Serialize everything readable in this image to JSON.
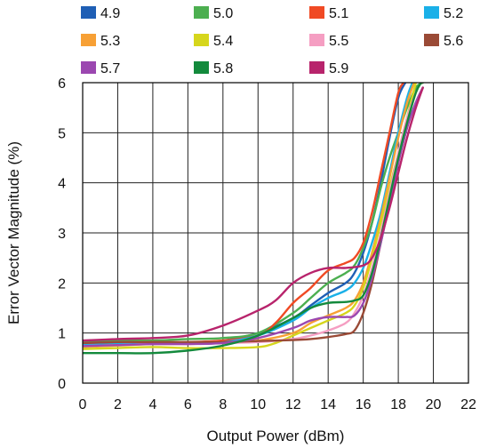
{
  "chart_data": {
    "type": "line",
    "title": "",
    "xlabel": "Output Power (dBm)",
    "ylabel": "Error Vector Magnitude (%)",
    "xlim": [
      0,
      22
    ],
    "ylim": [
      0,
      6
    ],
    "xticks": [
      "0",
      "2",
      "4",
      "6",
      "8",
      "10",
      "12",
      "14",
      "16",
      "18",
      "20",
      "22"
    ],
    "yticks": [
      "0",
      "1",
      "2",
      "3",
      "4",
      "5",
      "6"
    ],
    "grid": true,
    "legend_position": "top",
    "series": [
      {
        "name": "4.9",
        "color": "#1f5fb5",
        "x": [
          0,
          2,
          4,
          6,
          8,
          10,
          12,
          13,
          14,
          15,
          15.5,
          16,
          16.5,
          17,
          17.5,
          18,
          18.4
        ],
        "y": [
          0.78,
          0.8,
          0.8,
          0.8,
          0.85,
          1.0,
          1.3,
          1.55,
          1.8,
          2.0,
          2.2,
          2.6,
          3.2,
          4.0,
          4.9,
          5.7,
          6.0
        ]
      },
      {
        "name": "5.0",
        "color": "#4caf50",
        "x": [
          0,
          2,
          4,
          6,
          8,
          10,
          12,
          13,
          14,
          15,
          15.5,
          16,
          16.5,
          17,
          17.5,
          18,
          18.5,
          19,
          19.4
        ],
        "y": [
          0.82,
          0.85,
          0.85,
          0.88,
          0.9,
          1.0,
          1.4,
          1.7,
          2.0,
          2.2,
          2.35,
          2.7,
          3.2,
          3.9,
          4.5,
          5.0,
          5.5,
          5.9,
          6.0
        ]
      },
      {
        "name": "5.1",
        "color": "#f04a24",
        "x": [
          0,
          2,
          4,
          6,
          8,
          10,
          11,
          12,
          13,
          14,
          15,
          15.5,
          16,
          16.5,
          17,
          17.5,
          18,
          18.3
        ],
        "y": [
          0.78,
          0.8,
          0.82,
          0.82,
          0.85,
          0.95,
          1.2,
          1.6,
          1.9,
          2.25,
          2.4,
          2.5,
          2.8,
          3.4,
          4.2,
          5.0,
          5.8,
          6.0
        ]
      },
      {
        "name": "5.2",
        "color": "#1ab0e8",
        "x": [
          0,
          2,
          4,
          6,
          8,
          10,
          12,
          13,
          14,
          15,
          15.5,
          16,
          16.5,
          17,
          17.5,
          18,
          18.5,
          18.8
        ],
        "y": [
          0.76,
          0.78,
          0.78,
          0.8,
          0.82,
          0.95,
          1.25,
          1.5,
          1.7,
          1.85,
          2.0,
          2.3,
          2.8,
          3.4,
          4.2,
          5.0,
          5.7,
          6.0
        ]
      },
      {
        "name": "5.3",
        "color": "#f7a035",
        "x": [
          0,
          2,
          4,
          6,
          8,
          10,
          12,
          13,
          14,
          15,
          15.5,
          16,
          16.5,
          17,
          17.5,
          18,
          18.5,
          18.9
        ],
        "y": [
          0.72,
          0.75,
          0.78,
          0.78,
          0.8,
          0.85,
          1.0,
          1.2,
          1.35,
          1.5,
          1.65,
          2.0,
          2.6,
          3.3,
          4.1,
          4.9,
          5.6,
          6.0
        ]
      },
      {
        "name": "5.4",
        "color": "#d6d61c",
        "x": [
          0,
          2,
          4,
          6,
          8,
          10,
          11,
          12,
          13,
          14,
          15,
          15.5,
          16,
          16.5,
          17,
          17.5,
          18,
          18.5,
          19
        ],
        "y": [
          0.68,
          0.7,
          0.72,
          0.7,
          0.7,
          0.72,
          0.8,
          0.95,
          1.1,
          1.25,
          1.4,
          1.55,
          1.9,
          2.5,
          3.2,
          3.9,
          4.6,
          5.3,
          6.0
        ]
      },
      {
        "name": "5.5",
        "color": "#f59ec2",
        "x": [
          0,
          2,
          4,
          6,
          8,
          10,
          12,
          13,
          14,
          15,
          15.5,
          16,
          16.5,
          17,
          17.5,
          18,
          18.5,
          19,
          19.3
        ],
        "y": [
          0.74,
          0.76,
          0.78,
          0.78,
          0.8,
          0.82,
          0.88,
          0.95,
          1.05,
          1.2,
          1.4,
          1.75,
          2.3,
          3.0,
          3.8,
          4.6,
          5.3,
          5.8,
          6.0
        ]
      },
      {
        "name": "5.6",
        "color": "#9a4a36",
        "x": [
          0,
          2,
          4,
          6,
          8,
          10,
          12,
          13,
          14,
          15,
          15.5,
          16,
          16.5,
          17,
          17.5,
          18,
          18.5,
          19,
          19.4
        ],
        "y": [
          0.8,
          0.82,
          0.82,
          0.82,
          0.82,
          0.84,
          0.86,
          0.88,
          0.92,
          0.98,
          1.05,
          1.4,
          2.0,
          2.8,
          3.6,
          4.4,
          5.1,
          5.6,
          5.9
        ]
      },
      {
        "name": "5.7",
        "color": "#9b47b0",
        "x": [
          0,
          2,
          4,
          6,
          8,
          10,
          12,
          13,
          14,
          15,
          15.5,
          16,
          16.5,
          17,
          17.5,
          18,
          18.5,
          19,
          19.4
        ],
        "y": [
          0.74,
          0.76,
          0.78,
          0.78,
          0.8,
          0.9,
          1.1,
          1.25,
          1.32,
          1.32,
          1.35,
          1.6,
          2.1,
          2.8,
          3.6,
          4.4,
          5.1,
          5.6,
          5.9
        ]
      },
      {
        "name": "5.8",
        "color": "#138a3c",
        "x": [
          0,
          2,
          4,
          6,
          8,
          10,
          12,
          13,
          14,
          15,
          15.5,
          16,
          16.5,
          17,
          17.5,
          18,
          18.5,
          19,
          19.3
        ],
        "y": [
          0.6,
          0.6,
          0.6,
          0.65,
          0.75,
          0.95,
          1.3,
          1.5,
          1.6,
          1.62,
          1.65,
          1.75,
          2.2,
          2.9,
          3.7,
          4.5,
          5.2,
          5.8,
          6.0
        ]
      },
      {
        "name": "5.9",
        "color": "#b8246c",
        "x": [
          0,
          2,
          4,
          6,
          8,
          10,
          11,
          12,
          13,
          14,
          15,
          16,
          16.5,
          17,
          17.5,
          18,
          18.5,
          19,
          19.4
        ],
        "y": [
          0.85,
          0.88,
          0.9,
          0.95,
          1.15,
          1.45,
          1.65,
          2.0,
          2.2,
          2.3,
          2.3,
          2.35,
          2.5,
          2.9,
          3.5,
          4.2,
          4.9,
          5.5,
          5.9
        ]
      }
    ]
  }
}
